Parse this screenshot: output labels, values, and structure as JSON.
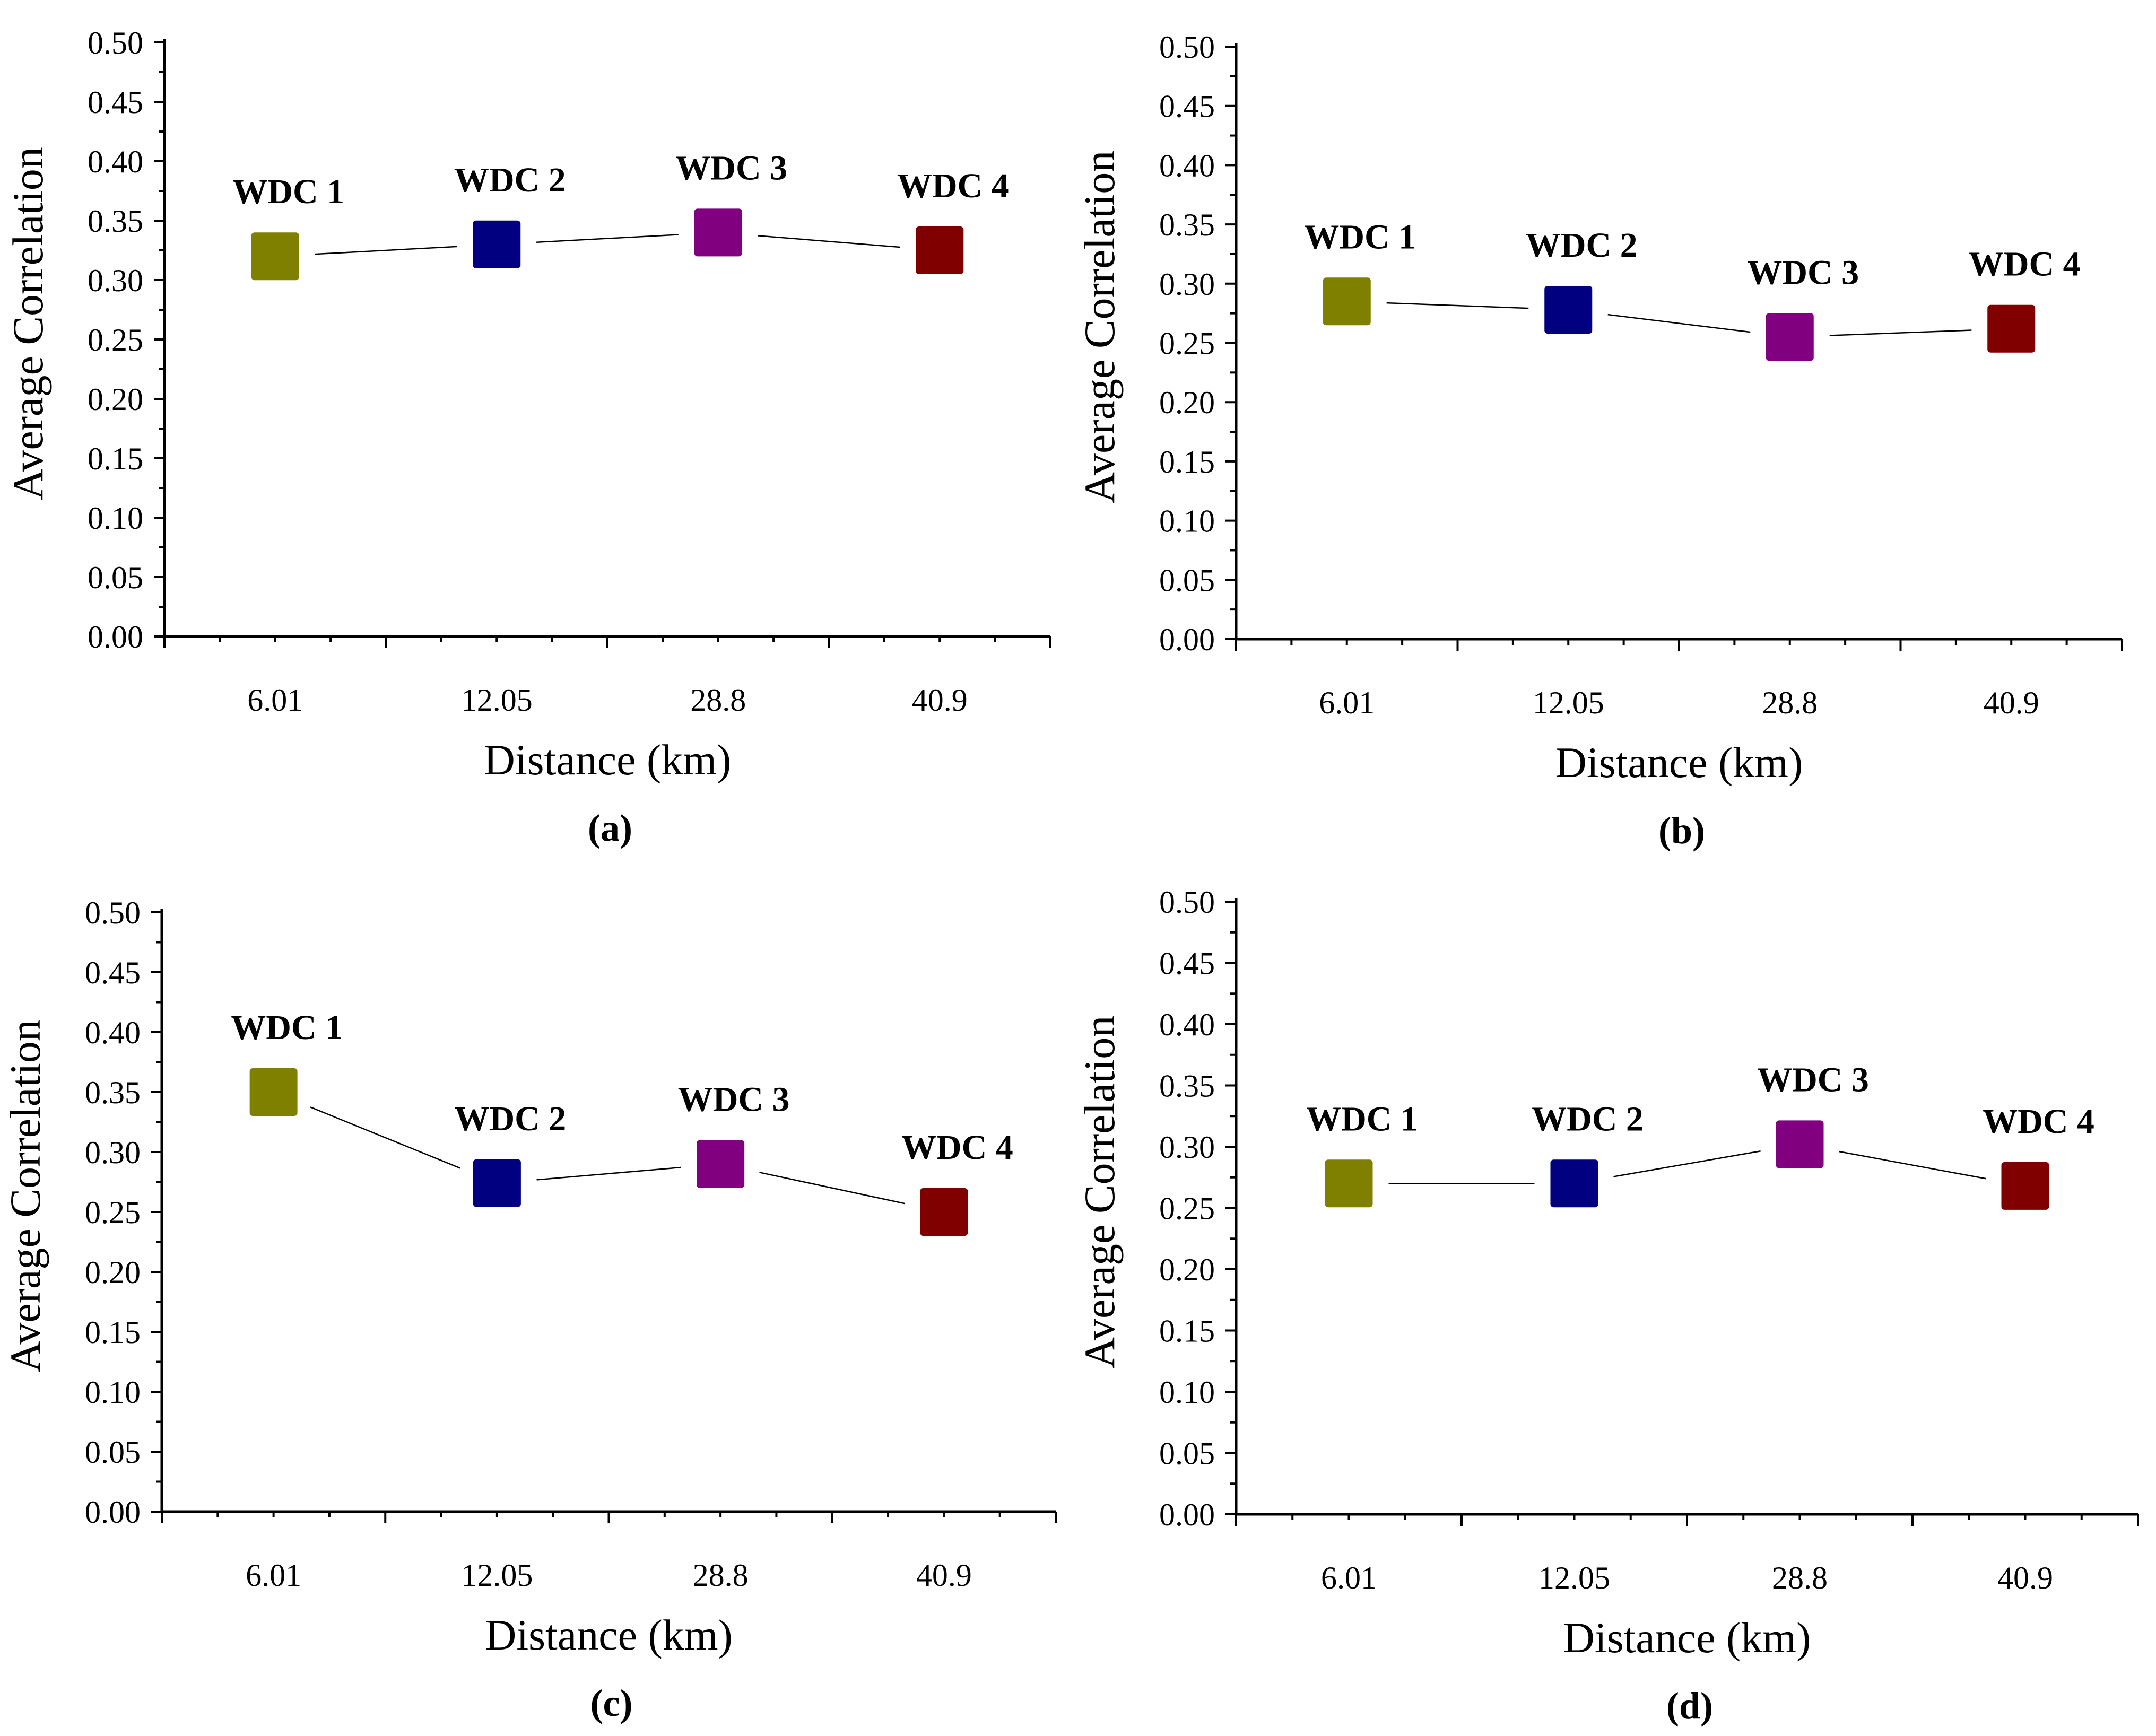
{
  "chart_data": [
    {
      "type": "scatter",
      "panel_label": "(a)",
      "xlabel": "Distance (km)",
      "ylabel": "Average Correlation",
      "ylim": [
        0,
        0.5
      ],
      "y_ticks": [
        "0.00",
        "0.05",
        "0.10",
        "0.15",
        "0.20",
        "0.25",
        "0.30",
        "0.35",
        "0.40",
        "0.45",
        "0.50"
      ],
      "categories": [
        "6.01",
        "12.05",
        "28.8",
        "40.9"
      ],
      "point_labels": [
        "WDC 1",
        "WDC 2",
        "WDC 3",
        "WDC 4"
      ],
      "values": [
        0.32,
        0.33,
        0.34,
        0.325
      ],
      "colors": [
        "#808000",
        "#000080",
        "#800080",
        "#800000"
      ],
      "grid": false
    },
    {
      "type": "scatter",
      "panel_label": "(b)",
      "xlabel": "Distance (km)",
      "ylabel": "Average Correlation",
      "ylim": [
        0,
        0.5
      ],
      "y_ticks": [
        "0.00",
        "0.05",
        "0.10",
        "0.15",
        "0.20",
        "0.25",
        "0.30",
        "0.35",
        "0.40",
        "0.45",
        "0.50"
      ],
      "categories": [
        "6.01",
        "12.05",
        "28.8",
        "40.9"
      ],
      "point_labels": [
        "WDC 1",
        "WDC 2",
        "WDC 3",
        "WDC 4"
      ],
      "values": [
        0.285,
        0.278,
        0.255,
        0.262
      ],
      "colors": [
        "#808000",
        "#000080",
        "#800080",
        "#800000"
      ],
      "grid": false
    },
    {
      "type": "scatter",
      "panel_label": "(c)",
      "xlabel": "Distance (km)",
      "ylabel": "Average Correlation",
      "ylim": [
        0,
        0.5
      ],
      "y_ticks": [
        "0.00",
        "0.05",
        "0.10",
        "0.15",
        "0.20",
        "0.25",
        "0.30",
        "0.35",
        "0.40",
        "0.45",
        "0.50"
      ],
      "categories": [
        "6.01",
        "12.05",
        "28.8",
        "40.9"
      ],
      "point_labels": [
        "WDC 1",
        "WDC 2",
        "WDC 3",
        "WDC 4"
      ],
      "values": [
        0.35,
        0.274,
        0.29,
        0.25
      ],
      "colors": [
        "#808000",
        "#000080",
        "#800080",
        "#800000"
      ],
      "grid": false
    },
    {
      "type": "scatter",
      "panel_label": "(d)",
      "xlabel": "Distance (km)",
      "ylabel": "Average Correlation",
      "ylim": [
        0,
        0.5
      ],
      "y_ticks": [
        "0.00",
        "0.05",
        "0.10",
        "0.15",
        "0.20",
        "0.25",
        "0.30",
        "0.35",
        "0.40",
        "0.45",
        "0.50"
      ],
      "categories": [
        "6.01",
        "12.05",
        "28.8",
        "40.9"
      ],
      "point_labels": [
        "WDC 1",
        "WDC 2",
        "WDC 3",
        "WDC 4"
      ],
      "values": [
        0.27,
        0.27,
        0.302,
        0.268
      ],
      "colors": [
        "#808000",
        "#000080",
        "#800080",
        "#800000"
      ],
      "grid": false
    }
  ]
}
